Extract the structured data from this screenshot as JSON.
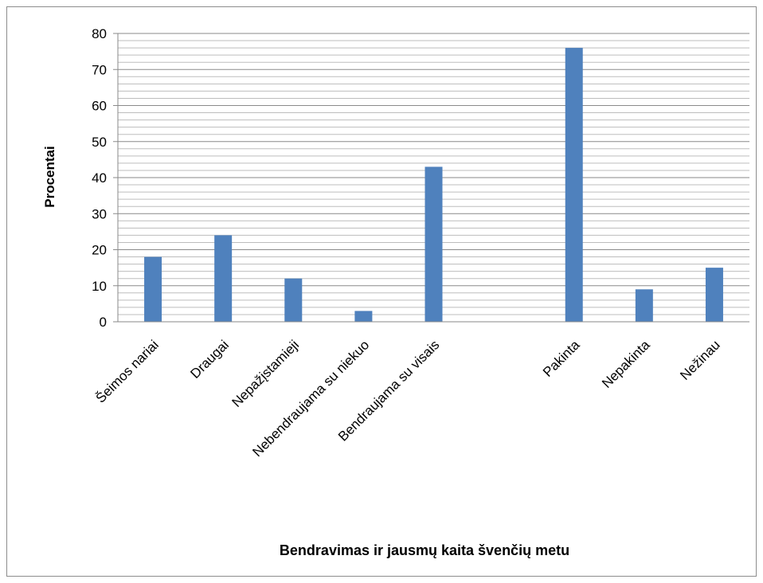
{
  "chart_data": {
    "type": "bar",
    "categories": [
      "Šeimos nariai",
      "Draugai",
      "Nepažįstamieji",
      "Nebendraujama su niekuo",
      "Bendraujama su visais",
      "",
      "Pakinta",
      "Nepakinta",
      "Nežinau"
    ],
    "values": [
      18,
      24,
      12,
      3,
      43,
      null,
      76,
      9,
      15
    ],
    "title": "",
    "xlabel": "Bendravimas ir jausmų kaita švenčių metu",
    "ylabel": "Procentai",
    "ylim": [
      0,
      80
    ],
    "yticks": [
      "0",
      "10",
      "20",
      "30",
      "40",
      "50",
      "60",
      "70",
      "80"
    ],
    "grid": true,
    "bar_color": "#4f81bd"
  }
}
